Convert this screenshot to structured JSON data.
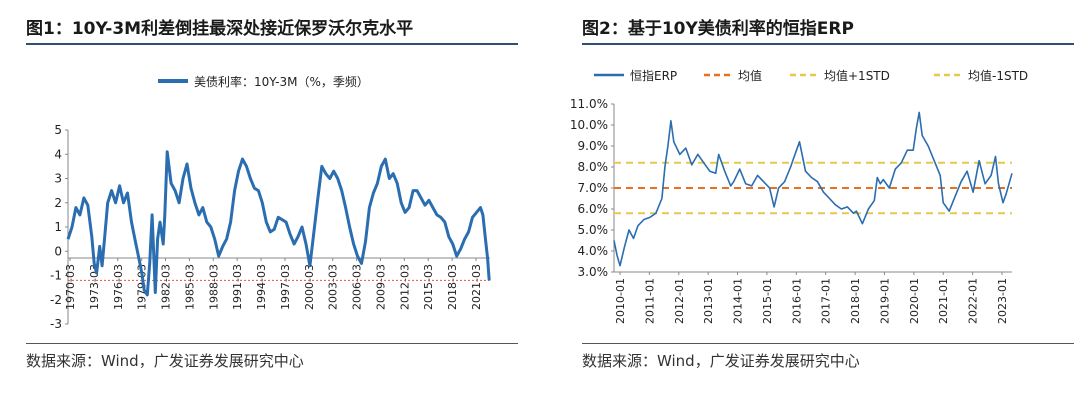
{
  "figures": [
    {
      "title": "图1：10Y-3M利差倒挂最深处接近保罗沃尔克水平",
      "source": "数据来源：Wind，广发证券发展研究中心",
      "chart_data": {
        "type": "line",
        "legend": [
          "美债利率：10Y-3M（%，季频）"
        ],
        "legend_position": "top-center",
        "ylim": [
          -3,
          5
        ],
        "yticks": [
          "5",
          "4",
          "3",
          "2",
          "1",
          "0",
          "-1",
          "-2",
          "-3"
        ],
        "xticks": [
          "1970-03",
          "1973-03",
          "1976-03",
          "1979-03",
          "1982-03",
          "1985-03",
          "1988-03",
          "1991-03",
          "1994-03",
          "1997-03",
          "2000-03",
          "2003-03",
          "2006-03",
          "2009-03",
          "2012-03",
          "2015-03",
          "2018-03",
          "2021-03"
        ],
        "xlim": [
          1970.0,
          2023.2
        ],
        "reference_line": {
          "value": -1.2,
          "style": "dashed",
          "color": "#e8534f"
        },
        "series_color": "#2a6db0",
        "series": [
          {
            "name": "美债利率：10Y-3M（%，季频）",
            "x": [
              1970.0,
              1970.5,
              1971.0,
              1971.5,
              1972.0,
              1972.5,
              1973.0,
              1973.3,
              1973.6,
              1974.0,
              1974.3,
              1974.6,
              1975.0,
              1975.5,
              1976.0,
              1976.5,
              1977.0,
              1977.5,
              1978.0,
              1978.5,
              1979.0,
              1979.3,
              1979.6,
              1980.0,
              1980.3,
              1980.6,
              1981.0,
              1981.3,
              1981.6,
              1982.0,
              1982.2,
              1982.5,
              1983.0,
              1983.5,
              1984.0,
              1984.5,
              1985.0,
              1985.5,
              1986.0,
              1986.5,
              1987.0,
              1987.5,
              1988.0,
              1988.5,
              1989.0,
              1989.5,
              1990.0,
              1990.5,
              1991.0,
              1991.5,
              1992.0,
              1992.5,
              1993.0,
              1993.5,
              1994.0,
              1994.5,
              1995.0,
              1995.5,
              1996.0,
              1996.5,
              1997.0,
              1997.5,
              1998.0,
              1998.5,
              1999.0,
              1999.5,
              2000.0,
              2000.5,
              2001.0,
              2001.5,
              2002.0,
              2002.5,
              2003.0,
              2003.5,
              2004.0,
              2004.5,
              2005.0,
              2005.5,
              2006.0,
              2006.5,
              2007.0,
              2007.5,
              2008.0,
              2008.5,
              2009.0,
              2009.5,
              2010.0,
              2010.5,
              2011.0,
              2011.5,
              2012.0,
              2012.5,
              2013.0,
              2013.5,
              2014.0,
              2014.5,
              2015.0,
              2015.5,
              2016.0,
              2016.5,
              2017.0,
              2017.5,
              2018.0,
              2018.5,
              2019.0,
              2019.5,
              2020.0,
              2020.5,
              2021.0,
              2021.5,
              2022.0,
              2022.3,
              2022.6,
              2022.9,
              2023.1
            ],
            "values": [
              0.5,
              1.0,
              1.8,
              1.5,
              2.2,
              1.9,
              0.6,
              -0.5,
              -0.9,
              0.2,
              -0.6,
              0.5,
              2.0,
              2.5,
              2.0,
              2.7,
              2.0,
              2.4,
              1.2,
              0.4,
              -0.4,
              -0.9,
              -1.6,
              -1.8,
              -0.5,
              1.5,
              -1.7,
              0.5,
              1.2,
              0.3,
              1.5,
              4.1,
              2.8,
              2.5,
              2.0,
              3.0,
              3.6,
              2.6,
              2.0,
              1.5,
              1.8,
              1.2,
              1.0,
              0.5,
              -0.2,
              0.2,
              0.5,
              1.2,
              2.5,
              3.3,
              3.8,
              3.5,
              3.0,
              2.6,
              2.5,
              2.0,
              1.2,
              0.8,
              0.9,
              1.4,
              1.3,
              1.2,
              0.7,
              0.3,
              0.6,
              1.0,
              0.3,
              -0.6,
              0.8,
              2.2,
              3.5,
              3.2,
              3.0,
              3.3,
              3.0,
              2.5,
              1.8,
              1.0,
              0.3,
              -0.2,
              -0.5,
              0.4,
              1.8,
              2.4,
              2.8,
              3.5,
              3.8,
              3.0,
              3.2,
              2.8,
              2.0,
              1.6,
              1.8,
              2.5,
              2.5,
              2.2,
              1.9,
              2.1,
              1.8,
              1.5,
              1.4,
              1.2,
              0.6,
              0.3,
              -0.2,
              0.1,
              0.5,
              0.8,
              1.4,
              1.6,
              1.8,
              1.5,
              0.6,
              -0.3,
              -1.2
            ]
          }
        ]
      }
    },
    {
      "title": "图2：基于10Y美债利率的恒指ERP",
      "source": "数据来源：Wind，广发证券发展研究中心",
      "chart_data": {
        "type": "line",
        "legend": [
          "恒指ERP",
          "均值",
          "均值+1STD",
          "均值-1STD"
        ],
        "legend_position": "top-center",
        "ylim": [
          3.0,
          11.0
        ],
        "yticks": [
          "11.0%",
          "10.0%",
          "9.0%",
          "8.0%",
          "7.0%",
          "6.0%",
          "5.0%",
          "4.0%",
          "3.0%"
        ],
        "xticks": [
          "2010-01",
          "2011-01",
          "2012-01",
          "2013-01",
          "2014-01",
          "2015-01",
          "2016-01",
          "2017-01",
          "2018-01",
          "2019-01",
          "2020-01",
          "2021-01",
          "2022-01",
          "2023-01"
        ],
        "xlim": [
          2010.0,
          2023.3
        ],
        "series_color": "#2a6db0",
        "reference_lines": [
          {
            "name": "均值",
            "value": 7.0,
            "color": "#e8711f",
            "style": "dashed"
          },
          {
            "name": "均值+1STD",
            "value": 8.2,
            "color": "#e6c84b",
            "style": "dashed"
          },
          {
            "name": "均值-1STD",
            "value": 5.8,
            "color": "#e6c84b",
            "style": "dashed"
          }
        ],
        "series": [
          {
            "name": "恒指ERP",
            "x": [
              2010.0,
              2010.1,
              2010.2,
              2010.35,
              2010.5,
              2010.65,
              2010.8,
              2011.0,
              2011.2,
              2011.4,
              2011.6,
              2011.7,
              2011.8,
              2011.9,
              2012.0,
              2012.2,
              2012.4,
              2012.6,
              2012.8,
              2013.0,
              2013.2,
              2013.4,
              2013.5,
              2013.7,
              2013.9,
              2014.0,
              2014.2,
              2014.4,
              2014.6,
              2014.8,
              2015.0,
              2015.2,
              2015.35,
              2015.5,
              2015.7,
              2015.9,
              2016.0,
              2016.1,
              2016.2,
              2016.4,
              2016.6,
              2016.8,
              2017.0,
              2017.2,
              2017.4,
              2017.6,
              2017.8,
              2018.0,
              2018.1,
              2018.3,
              2018.5,
              2018.7,
              2018.8,
              2018.9,
              2019.0,
              2019.2,
              2019.4,
              2019.6,
              2019.8,
              2020.0,
              2020.1,
              2020.2,
              2020.3,
              2020.5,
              2020.7,
              2020.9,
              2021.0,
              2021.2,
              2021.4,
              2021.6,
              2021.8,
              2022.0,
              2022.2,
              2022.4,
              2022.6,
              2022.75,
              2022.85,
              2023.0,
              2023.1,
              2023.2,
              2023.3
            ],
            "values": [
              4.5,
              3.8,
              3.3,
              4.2,
              5.0,
              4.6,
              5.2,
              5.5,
              5.6,
              5.8,
              6.5,
              8.0,
              9.0,
              10.2,
              9.2,
              8.6,
              8.9,
              8.1,
              8.6,
              8.2,
              7.8,
              7.7,
              8.6,
              7.8,
              7.1,
              7.3,
              7.9,
              7.2,
              7.1,
              7.6,
              7.3,
              7.0,
              6.1,
              7.0,
              7.3,
              8.0,
              8.4,
              8.8,
              9.2,
              7.8,
              7.5,
              7.3,
              6.8,
              6.5,
              6.2,
              6.0,
              6.1,
              5.8,
              5.9,
              5.3,
              6.0,
              6.4,
              7.5,
              7.2,
              7.4,
              7.0,
              7.9,
              8.2,
              8.8,
              8.8,
              9.8,
              10.6,
              9.5,
              9.0,
              8.3,
              7.6,
              6.3,
              5.9,
              6.6,
              7.3,
              7.8,
              6.8,
              8.3,
              7.2,
              7.6,
              8.5,
              7.2,
              6.3,
              6.7,
              7.2,
              7.7
            ]
          }
        ]
      }
    }
  ]
}
